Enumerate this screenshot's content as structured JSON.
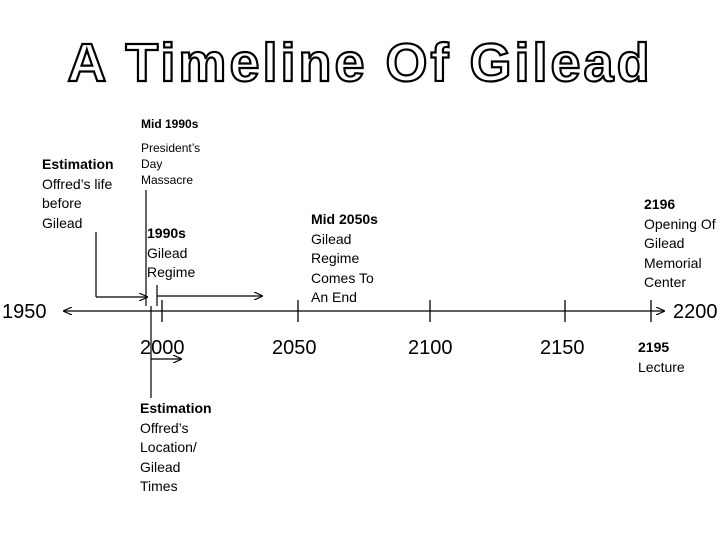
{
  "title": "A Timeline Of Gilead",
  "axis": {
    "start_label": "1950",
    "end_label": "2200"
  },
  "ticks": [
    "2000",
    "2050",
    "2100",
    "2150"
  ],
  "events": {
    "offred_before": {
      "heading": "Estimation",
      "text": "Offred’s life\nbefore\nGilead"
    },
    "presidents_day": {
      "heading": "Mid 1990s",
      "text": "President’s\nDay\nMassacre"
    },
    "regime_1990s": {
      "heading": "1990s",
      "text": "Gilead\nRegime"
    },
    "regime_end": {
      "heading": "Mid 2050s",
      "text": "Gilead\nRegime\nComes To\nAn End"
    },
    "memorial_center": {
      "heading": "2196",
      "text": "Opening Of\nGilead\nMemorial\nCenter"
    },
    "lecture": {
      "heading": "2195",
      "text": "Lecture"
    },
    "offred_location": {
      "heading": "Estimation",
      "text": "Offred’s\nLocation/\nGilead\nTimes"
    }
  },
  "colors": {
    "line": "#000000",
    "title_fill": "#ffffff",
    "title_stroke": "#000000"
  }
}
